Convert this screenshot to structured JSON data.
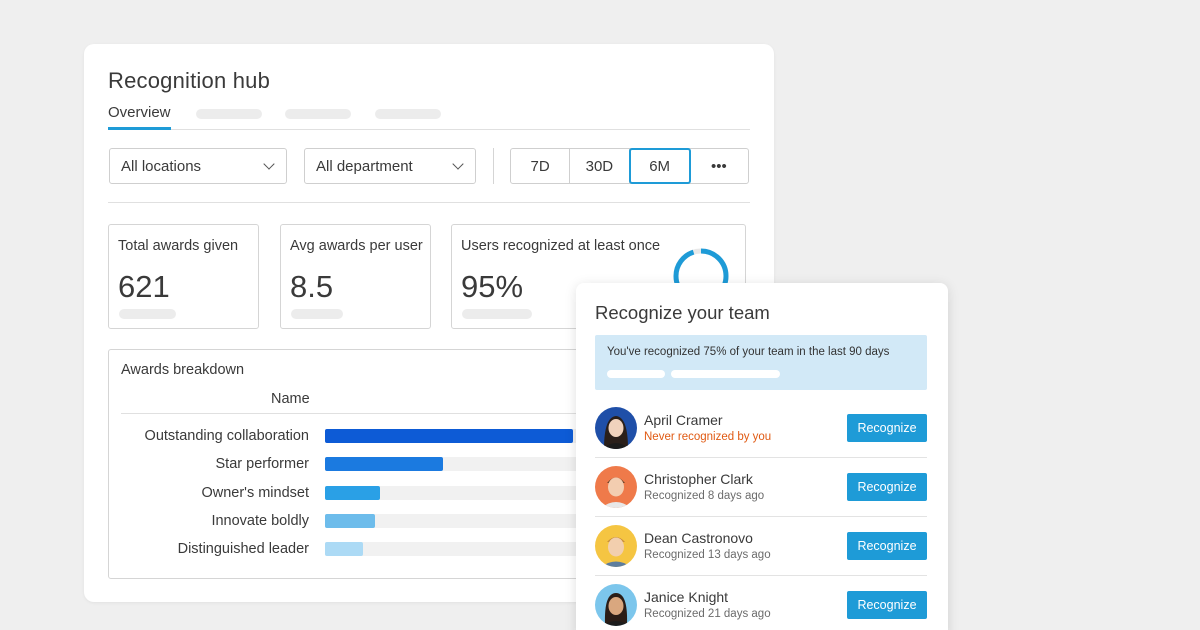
{
  "hub": {
    "title": "Recognition hub",
    "tabs": [
      {
        "label": "Overview",
        "active": true
      }
    ],
    "filters": {
      "location": "All locations",
      "department": "All department"
    },
    "ranges": [
      "7D",
      "30D",
      "6M",
      "•••"
    ],
    "active_range": "6M"
  },
  "stats": [
    {
      "label": "Total awards given",
      "value": "621"
    },
    {
      "label": "Avg awards per user",
      "value": "8.5"
    },
    {
      "label": "Users recognized at least once",
      "value": "95%",
      "ring_fraction": 0.95
    }
  ],
  "breakdown": {
    "title": "Awards breakdown",
    "column": "Name",
    "rows": [
      {
        "label": "Outstanding collaboration",
        "fraction": 0.59,
        "color": "#0d5bd6"
      },
      {
        "label": "Star performer",
        "fraction": 0.28,
        "color": "#1b7ae0"
      },
      {
        "label": "Owner's mindset",
        "fraction": 0.13,
        "color": "#2aa0e6"
      },
      {
        "label": "Innovate boldly",
        "fraction": 0.12,
        "color": "#6dbceb"
      },
      {
        "label": "Distinguished leader",
        "fraction": 0.09,
        "color": "#acdaf5"
      }
    ]
  },
  "team": {
    "title": "Recognize your team",
    "banner": "You've recognized 75% of your team in the last 90 days",
    "button_label": "Recognize",
    "people": [
      {
        "name": "April Cramer",
        "status": "Never recognized by you",
        "warn": true
      },
      {
        "name": "Christopher Clark",
        "status": "Recognized 8 days ago",
        "warn": false
      },
      {
        "name": "Dean Castronovo",
        "status": "Recognized 13 days ago",
        "warn": false
      },
      {
        "name": "Janice Knight",
        "status": "Recognized 21 days ago",
        "warn": false
      }
    ]
  },
  "colors": {
    "accent": "#1e9bd7",
    "warning": "#e05a13",
    "banner_bg": "#d2e9f7"
  },
  "icons": {
    "select": "chevron-down-icon",
    "more": "more-dots-icon"
  }
}
